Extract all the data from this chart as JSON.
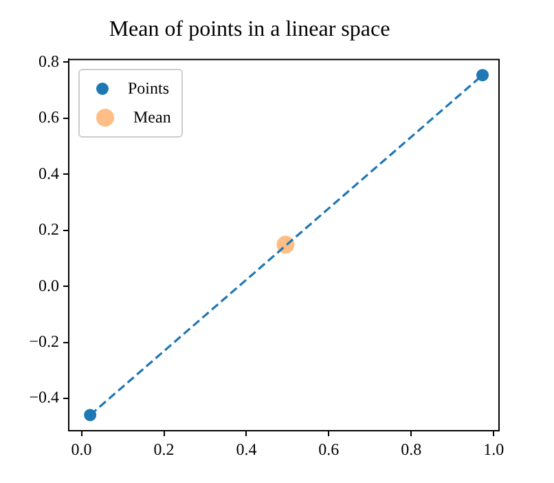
{
  "chart_data": {
    "type": "scatter",
    "title": "Mean of points in a linear space",
    "legend": "top left",
    "grid": false,
    "xlim": [
      -0.031,
      1.013
    ],
    "xticks": [
      {
        "value": 0,
        "label": "0.0"
      },
      {
        "value": 0.2,
        "label": "0.2"
      },
      {
        "value": 0.4,
        "label": "0.4"
      },
      {
        "value": 0.6,
        "label": "0.6"
      },
      {
        "value": 0.8,
        "label": "0.8"
      },
      {
        "value": 1,
        "label": "1.0"
      }
    ],
    "ylim": [
      -0.515,
      0.81
    ],
    "yticks": [
      {
        "value": -0.4,
        "label": "−0.4"
      },
      {
        "value": -0.2,
        "label": "−0.2"
      },
      {
        "value": 0,
        "label": "0.0"
      },
      {
        "value": 0.2,
        "label": "0.2"
      },
      {
        "value": 0.4,
        "label": "0.4"
      },
      {
        "value": 0.6,
        "label": "0.6"
      },
      {
        "value": 0.8,
        "label": "0.8"
      }
    ],
    "series": [
      {
        "type": "line",
        "line_style": "dashed",
        "marker": "none",
        "color": "#1f77b4",
        "x": [
          0.021,
          0.973
        ],
        "values": [
          -0.459,
          0.754
        ]
      },
      {
        "name": "Points",
        "marker": "circle",
        "color": "#1f77b4",
        "x": [
          0.021,
          0.973
        ],
        "values": [
          -0.459,
          0.754
        ]
      },
      {
        "name": "Mean",
        "marker": "circle",
        "color": "#ffbe86",
        "x": [
          0.495
        ],
        "values": [
          0.149
        ]
      }
    ]
  }
}
